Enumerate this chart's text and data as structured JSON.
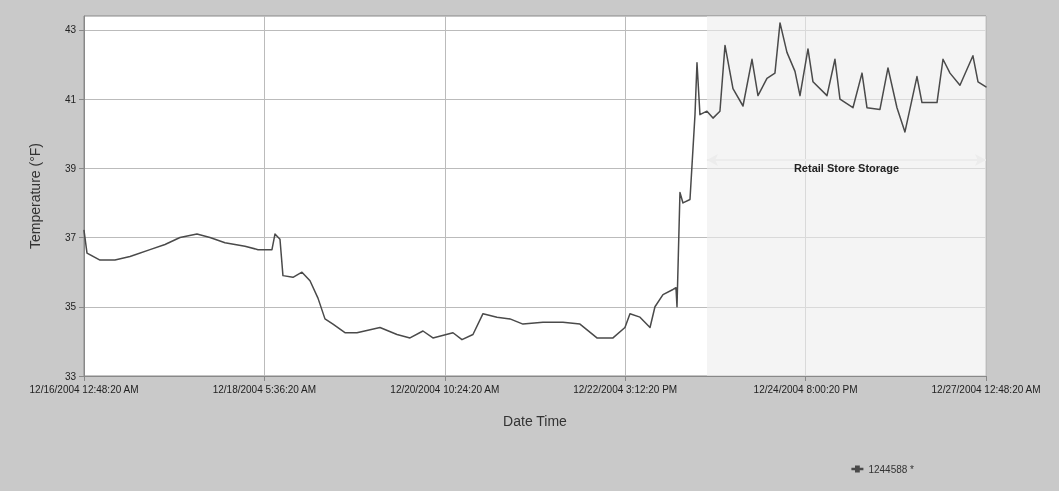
{
  "chart_data": {
    "type": "line",
    "xlabel": "Date Time",
    "ylabel": "Temperature (°F)",
    "xlim": [
      "2004-12-16T00:48:20",
      "2004-12-27T00:48:20"
    ],
    "xticks": [
      {
        "value": "2004-12-16T00:48:20",
        "label": "12/16/2004 12:48:20 AM"
      },
      {
        "value": "2004-12-18T05:36:20",
        "label": "12/18/2004 5:36:20 AM"
      },
      {
        "value": "2004-12-20T10:24:20",
        "label": "12/20/2004 10:24:20 AM"
      },
      {
        "value": "2004-12-22T15:12:20",
        "label": "12/22/2004 3:12:20 PM"
      },
      {
        "value": "2004-12-24T20:00:20",
        "label": "12/24/2004 8:00:20 PM"
      },
      {
        "value": "2004-12-27T00:48:20",
        "label": "12/27/2004 12:48:20 AM"
      }
    ],
    "ylim": [
      33,
      43.4
    ],
    "yticks": [
      33,
      35,
      37,
      39,
      41,
      43
    ],
    "grid": true,
    "legend": "bottom right",
    "marker": "none",
    "line_style": "solid",
    "x": [
      "2004-12-16T00:49",
      "2004-12-16T01:41",
      "2004-12-16T05:29",
      "2004-12-16T09:52",
      "2004-12-16T14:16",
      "2004-12-16T20:07",
      "2004-12-17T00:31",
      "2004-12-17T04:54",
      "2004-12-17T09:52",
      "2004-12-17T13:41",
      "2004-12-17T18:04",
      "2004-12-17T23:55",
      "2004-12-18T03:44",
      "2004-12-18T07:49",
      "2004-12-18T08:42",
      "2004-12-18T10:10",
      "2004-12-18T11:02",
      "2004-12-18T13:58",
      "2004-12-18T16:36",
      "2004-12-18T18:57",
      "2004-12-18T21:17",
      "2004-12-18T23:20",
      "2004-12-19T01:41",
      "2004-12-19T05:11",
      "2004-12-19T08:42",
      "2004-12-19T15:26",
      "2004-12-19T20:25",
      "2004-12-20T00:13",
      "2004-12-20T04:01",
      "2004-12-20T06:56",
      "2004-12-20T12:48",
      "2004-12-20T15:26",
      "2004-12-20T18:39",
      "2004-12-20T21:35",
      "2004-12-21T01:41",
      "2004-12-21T05:29",
      "2004-12-21T09:17",
      "2004-12-21T15:08",
      "2004-12-21T20:59",
      "2004-12-22T01:58",
      "2004-12-22T06:56",
      "2004-12-22T11:38",
      "2004-12-22T15:08",
      "2004-12-22T16:36",
      "2004-12-22T19:32",
      "2004-12-22T22:28",
      "2004-12-22T23:55",
      "2004-12-23T02:16",
      "2004-12-23T05:11",
      "2004-12-23T06:04",
      "2004-12-23T06:22",
      "2004-12-23T07:14",
      "2004-12-23T08:07",
      "2004-12-23T10:10",
      "2004-12-23T11:38",
      "2004-12-23T12:13",
      "2004-12-23T13:05",
      "2004-12-23T15:08",
      "2004-12-23T16:54",
      "2004-12-23T18:56",
      "2004-12-23T20:25",
      "2004-12-23T22:45",
      "2004-12-24T01:41",
      "2004-12-24T04:19",
      "2004-12-24T06:04",
      "2004-12-24T08:42",
      "2004-12-24T11:02",
      "2004-12-24T12:31",
      "2004-12-24T14:33",
      "2004-12-24T16:54",
      "2004-12-24T18:22",
      "2004-12-24T20:42",
      "2004-12-24T22:10",
      "2004-12-25T02:16",
      "2004-12-25T04:36",
      "2004-12-25T06:04",
      "2004-12-25T09:52",
      "2004-12-25T12:31",
      "2004-12-25T13:58",
      "2004-12-25T17:46",
      "2004-12-25T20:07",
      "2004-12-25T22:45",
      "2004-12-26T01:05",
      "2004-12-26T04:36",
      "2004-12-26T06:04",
      "2004-12-26T10:28",
      "2004-12-26T12:13",
      "2004-12-26T14:16",
      "2004-12-26T17:11",
      "2004-12-26T20:59",
      "2004-12-26T22:28",
      "2004-12-27T00:48"
    ],
    "series": [
      {
        "name": "1244588 *",
        "color": "#4a4a4a",
        "values": [
          37.2,
          36.55,
          36.35,
          36.35,
          36.45,
          36.65,
          36.8,
          37.0,
          37.1,
          37.0,
          36.85,
          36.75,
          36.65,
          36.65,
          37.1,
          36.95,
          35.9,
          35.85,
          36.0,
          35.75,
          35.25,
          34.65,
          34.5,
          34.25,
          34.25,
          34.4,
          34.2,
          34.1,
          34.3,
          34.1,
          34.25,
          34.05,
          34.2,
          34.8,
          34.7,
          34.65,
          34.5,
          34.55,
          34.55,
          34.5,
          34.1,
          34.1,
          34.4,
          34.8,
          34.7,
          34.4,
          35.0,
          35.35,
          35.5,
          35.55,
          35.0,
          38.3,
          38.0,
          38.1,
          40.55,
          42.05,
          40.55,
          40.65,
          40.45,
          40.65,
          42.55,
          41.3,
          40.8,
          42.15,
          41.1,
          41.6,
          41.75,
          43.2,
          42.35,
          41.8,
          41.1,
          42.45,
          41.5,
          41.1,
          42.15,
          41.0,
          40.75,
          41.75,
          40.75,
          40.7,
          41.9,
          40.75,
          40.05,
          41.65,
          40.9,
          40.9,
          42.15,
          41.75,
          41.4,
          42.25,
          41.5,
          41.35
        ]
      }
    ],
    "bands": [
      {
        "axis": "x",
        "from": "2004-12-23T15:08",
        "to": "2004-12-27T00:48:20",
        "label": "Retail Store Storage",
        "color": "#ececec"
      }
    ]
  }
}
